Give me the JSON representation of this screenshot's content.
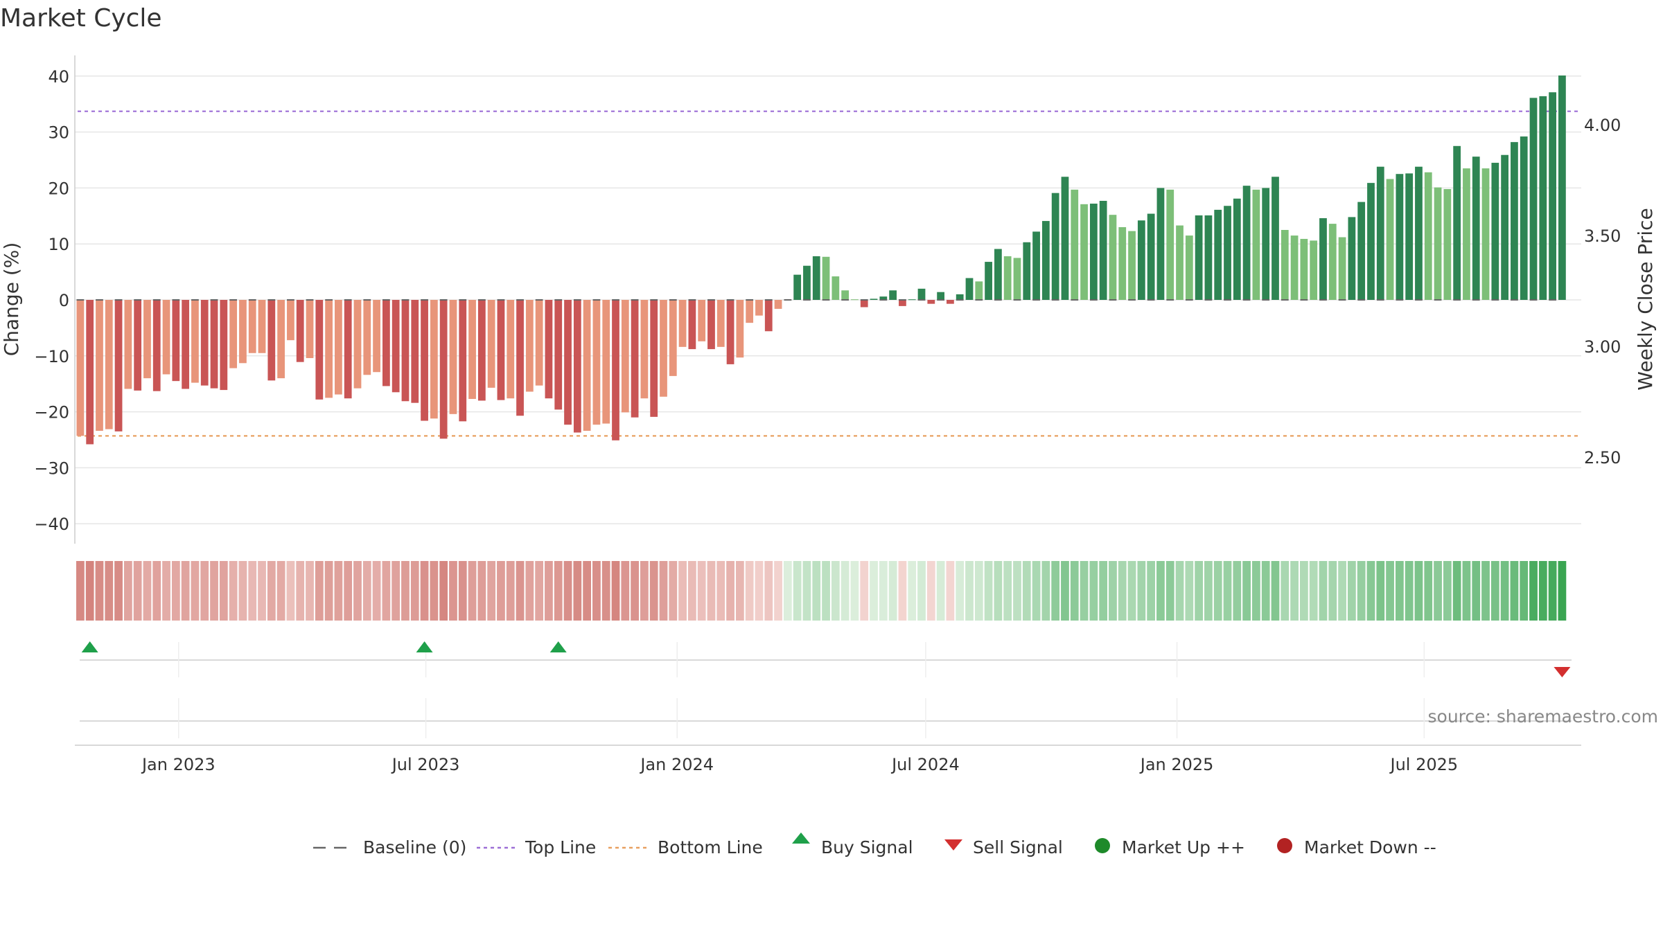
{
  "chart_data": {
    "type": "bar",
    "title": "Market Cycle",
    "y_label": "Change (%)",
    "y2_label": "Weekly Close Price",
    "source": "source: sharemaestro.com",
    "ylim": [
      -43,
      43
    ],
    "y_ticks": [
      40,
      30,
      20,
      10,
      0,
      -10,
      -20,
      -30,
      -40
    ],
    "y_tick_labels": [
      "40",
      "30",
      "20",
      "10",
      "0",
      "−10",
      "−20",
      "−30",
      "−40"
    ],
    "y2_ticks": [
      4.0,
      3.5,
      3.0,
      2.5
    ],
    "y2_tick_labels": [
      "4.00",
      "3.50",
      "3.00",
      "2.50"
    ],
    "y2lim": [
      2.05,
      4.2
    ],
    "x_start": "2022-10-17",
    "x_end": "2025-10-24",
    "x_ticks": [
      {
        "date": "2023-01-01",
        "label": "Jan 2023"
      },
      {
        "date": "2023-07-01",
        "label": "Jul 2023"
      },
      {
        "date": "2024-01-01",
        "label": "Jan 2024"
      },
      {
        "date": "2024-07-01",
        "label": "Jul 2024"
      },
      {
        "date": "2025-01-01",
        "label": "Jan 2025"
      },
      {
        "date": "2025-07-01",
        "label": "Jul 2025"
      }
    ],
    "first_bar_date": "2022-10-21",
    "bar_interval_days": 7,
    "values": [
      -24.3,
      -25.8,
      -23.4,
      -23.1,
      -23.5,
      -15.9,
      -16.2,
      -14.0,
      -16.3,
      -13.3,
      -14.5,
      -15.9,
      -14.8,
      -15.3,
      -15.8,
      -16.1,
      -12.2,
      -11.3,
      -9.5,
      -9.5,
      -14.4,
      -14.0,
      -7.2,
      -11.1,
      -10.4,
      -17.8,
      -17.5,
      -16.9,
      -17.6,
      -15.8,
      -13.4,
      -12.9,
      -15.4,
      -16.5,
      -18.1,
      -18.4,
      -21.6,
      -21.2,
      -24.8,
      -20.4,
      -21.7,
      -17.7,
      -18.0,
      -15.7,
      -17.9,
      -17.6,
      -20.7,
      -16.4,
      -15.3,
      -17.6,
      -19.6,
      -22.3,
      -23.7,
      -23.4,
      -22.3,
      -22.1,
      -25.1,
      -20.1,
      -21.0,
      -17.6,
      -20.9,
      -17.3,
      -13.6,
      -8.4,
      -8.8,
      -7.4,
      -8.8,
      -8.4,
      -11.5,
      -10.3,
      -4.1,
      -2.8,
      -5.6,
      -1.6,
      0,
      4.5,
      6.1,
      7.8,
      7.7,
      4.2,
      1.7,
      0.1,
      -1.3,
      0.2,
      0.6,
      1.7,
      -1.1,
      0.1,
      2.0,
      -0.7,
      1.4,
      -0.7,
      1.0,
      3.9,
      3.3,
      6.8,
      9.1,
      7.8,
      7.5,
      10.3,
      12.2,
      14.1,
      19.1,
      22.0,
      19.7,
      17.1,
      17.2,
      17.7,
      15.2,
      13.0,
      12.3,
      14.2,
      15.4,
      20.0,
      19.7,
      13.3,
      11.5,
      15.1,
      15.1,
      16.1,
      16.8,
      18.1,
      20.4,
      19.7,
      20.0,
      22.0,
      12.5,
      11.5,
      10.9,
      10.6,
      14.6,
      13.6,
      11.2,
      14.8,
      17.5,
      20.9,
      23.8,
      21.6,
      22.5,
      22.6,
      23.8,
      22.8,
      20.1,
      19.8,
      27.5,
      23.5,
      25.6,
      23.5,
      24.5,
      25.9,
      28.2,
      29.2,
      36.1,
      36.4,
      37.1,
      40.1
    ],
    "buy_signals": [
      "2022-10-28",
      "2023-06-30",
      "2023-10-06"
    ],
    "sell_signals": [
      "2025-10-10"
    ],
    "top_line": 33.7,
    "bottom_line": -24.3,
    "colors": {
      "neg_dark": "#c95555",
      "neg_light": "#e8957a",
      "pos_dark": "#2e8553",
      "pos_light": "#7dbf78",
      "top_line": "#9d6fd6",
      "bottom_line": "#e8a060",
      "buy": "#1fa04a",
      "sell": "#d32f2f",
      "market_up": "#1e8a2a",
      "market_down": "#b22222",
      "baseline": "#666666"
    },
    "legend": [
      {
        "key": "baseline",
        "label": "Baseline (0)",
        "symbol": "dash"
      },
      {
        "key": "top",
        "label": "Top Line",
        "symbol": "dot-purple"
      },
      {
        "key": "bottom",
        "label": "Bottom Line",
        "symbol": "dot-orange"
      },
      {
        "key": "buy",
        "label": "Buy Signal",
        "symbol": "tri-up"
      },
      {
        "key": "sell",
        "label": "Sell Signal",
        "symbol": "tri-down"
      },
      {
        "key": "up",
        "label": "Market Up ++",
        "symbol": "circle-green"
      },
      {
        "key": "down",
        "label": "Market Down --",
        "symbol": "circle-red"
      }
    ]
  }
}
